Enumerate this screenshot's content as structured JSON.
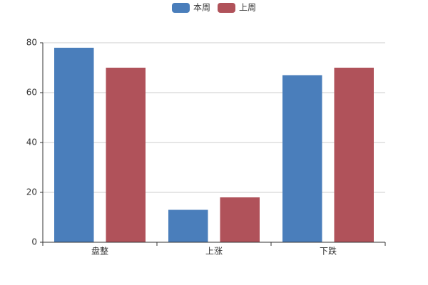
{
  "chart_data": {
    "type": "bar",
    "categories": [
      "盘整",
      "上涨",
      "下跌"
    ],
    "series": [
      {
        "name": "本周",
        "color": "#4a7ebb",
        "values": [
          78,
          13,
          67
        ]
      },
      {
        "name": "上周",
        "color": "#b0525a",
        "values": [
          70,
          18,
          70
        ]
      }
    ],
    "ylim": [
      0,
      80
    ],
    "yticks": [
      0,
      20,
      40,
      60,
      80
    ],
    "grid": true,
    "legend": "top"
  }
}
